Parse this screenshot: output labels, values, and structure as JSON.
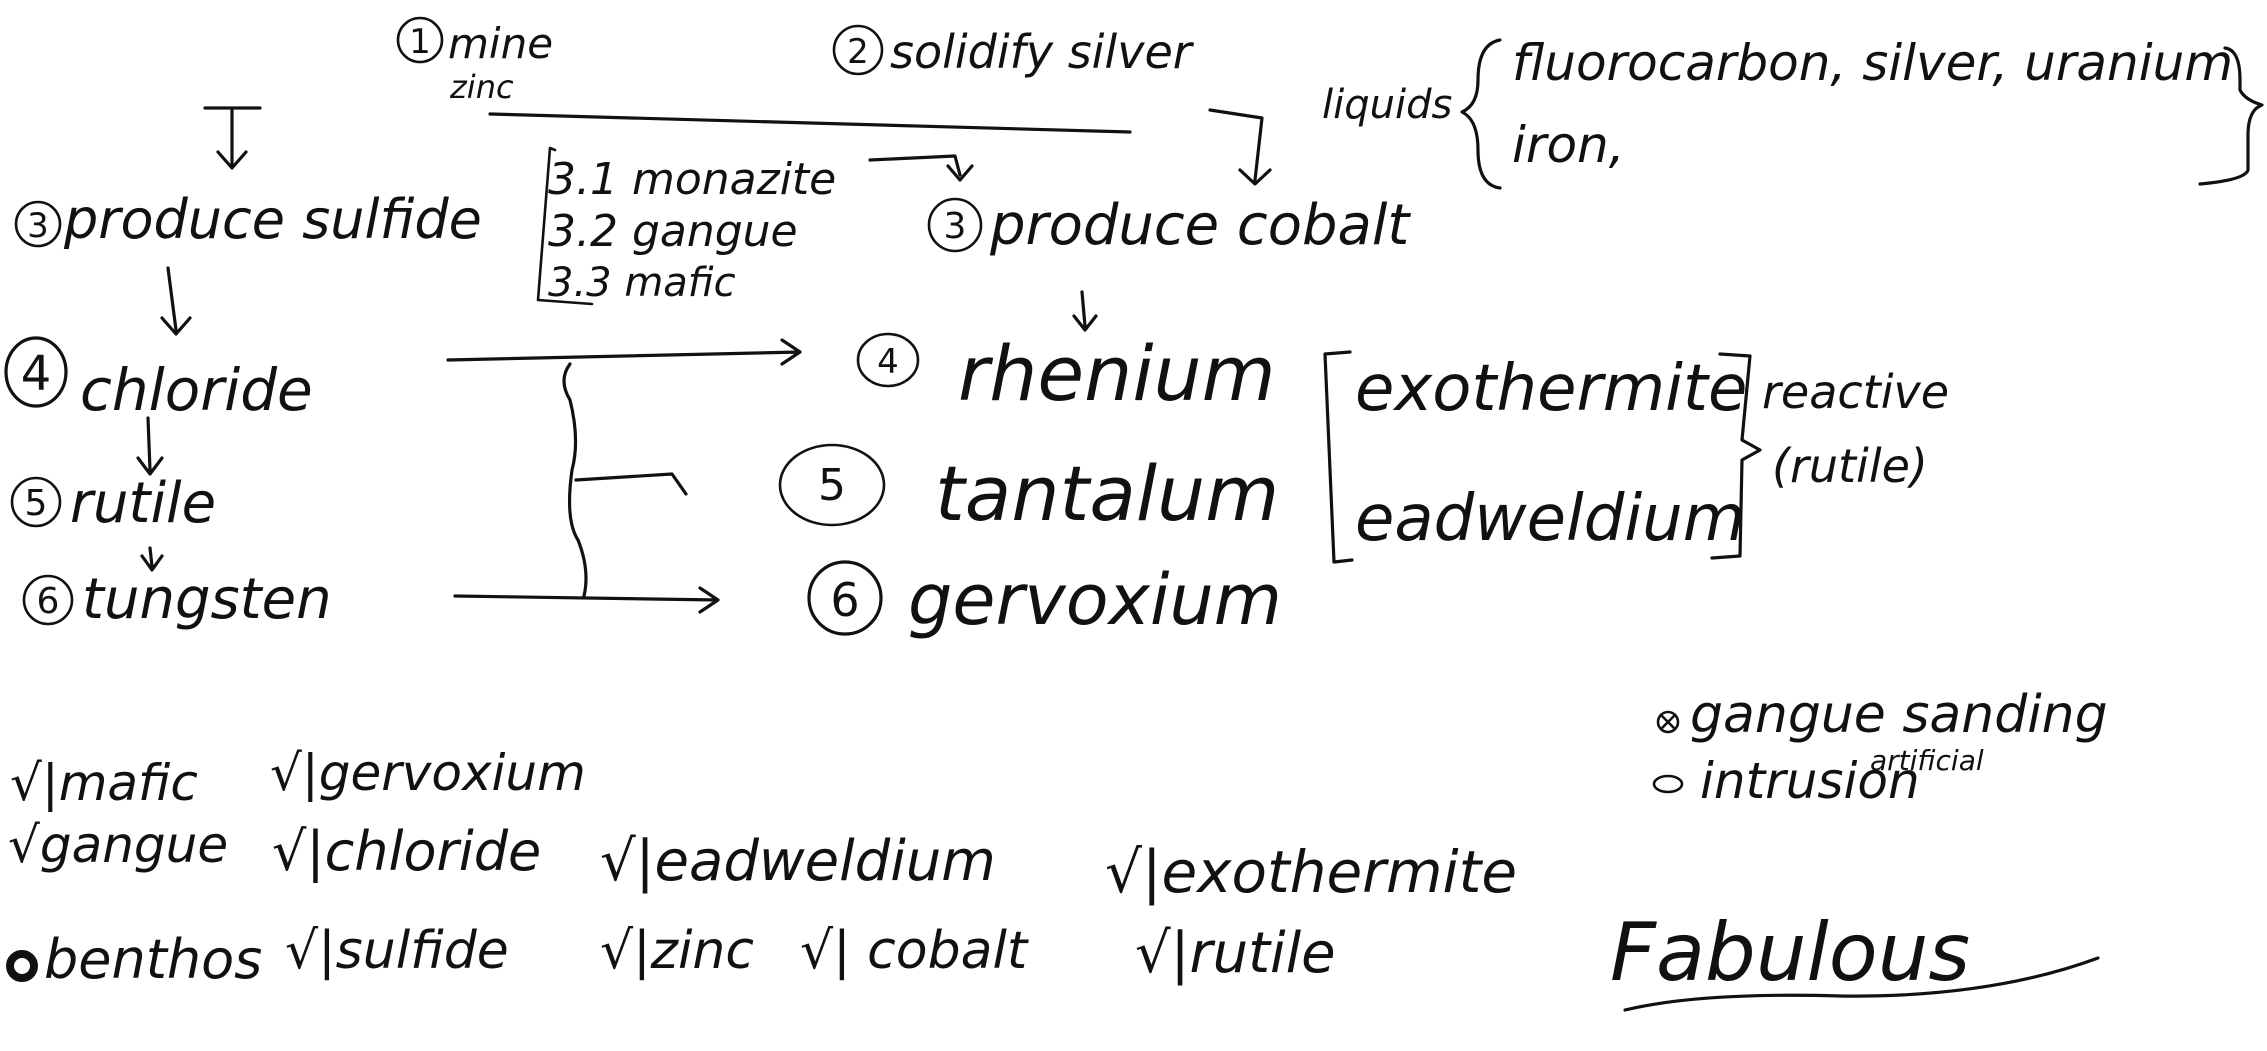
{
  "top": {
    "step1_num": "1",
    "step1_label": "mine",
    "step1_sub": "zinc",
    "step2_num": "2",
    "step2_label": "solidify silver",
    "liquids_label": "liquids",
    "liquids_line1": "fluorocarbon, silver, uranium",
    "liquids_line2": "iron,"
  },
  "left_branch": {
    "step3_num": "3",
    "step3_label": "produce sulfide",
    "step4_num": "4",
    "step4_label": "chloride",
    "step5_num": "5",
    "step5_label": "rutile",
    "step6_num": "6",
    "step6_label": "tungsten"
  },
  "substeps": {
    "s1": "3.1 monazite",
    "s2": "3.2 gangue",
    "s3": "3.3 mafic"
  },
  "right_branch": {
    "step3_num": "3",
    "step3_label": "produce cobalt",
    "step4_num": "4",
    "step4_label": "rhenium",
    "step5_num": "5",
    "step5_label": "tantalum",
    "step6_num": "6",
    "step6_label": "gervoxium",
    "bracket_top": "exothermite",
    "bracket_bottom": "eadweldium",
    "reactive": "reactive",
    "reactive_note": "(rutile)"
  },
  "checklist": {
    "mafic": "√|mafic",
    "gervoxium": "√|gervoxium",
    "gangue": "√gangue",
    "chloride": "√|chloride",
    "eadweldium": "√|eadweldium",
    "exothermite": "√|exothermite",
    "benthos": "benthos",
    "sulfide": "√|sulfide",
    "zinc": "√|zinc",
    "cobalt": "√| cobalt",
    "rutile": "√|rutile"
  },
  "notes": {
    "gangue_sanding": "gangue sanding",
    "intrusion": "intrusion",
    "artificial": "artificial",
    "fabulous": "Fabulous"
  }
}
